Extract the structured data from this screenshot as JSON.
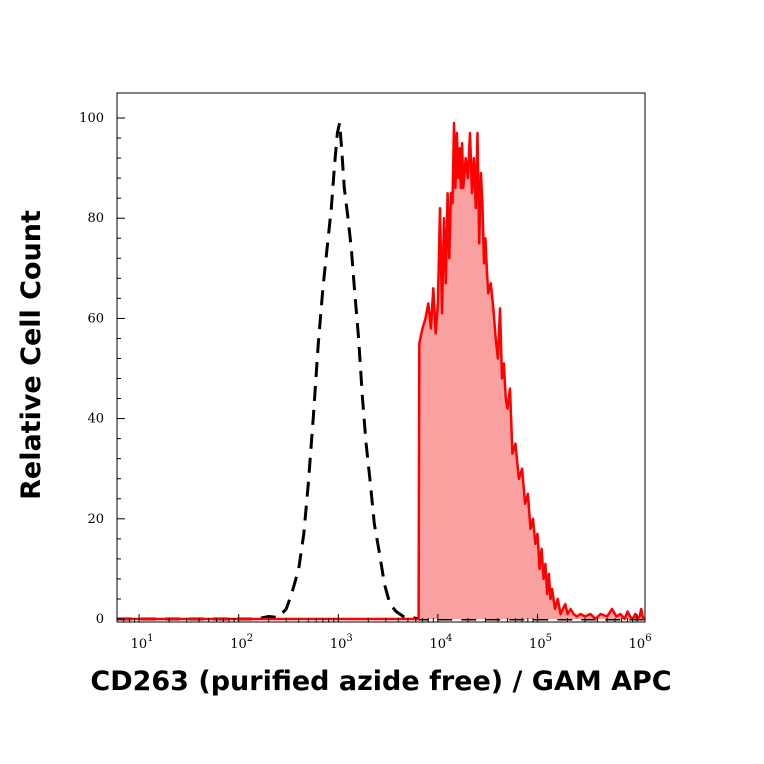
{
  "chart_data": {
    "type": "area",
    "title": "",
    "xlabel": "CD263 (purified azide free) / GAM APC",
    "ylabel": "Relative Cell Count",
    "x_scale": "log",
    "xlim": [
      6,
      1200000
    ],
    "ylim": [
      0,
      100
    ],
    "grid": false,
    "legend": "none",
    "x_ticks": [
      {
        "value": 10,
        "base": "10",
        "exp": "1"
      },
      {
        "value": 100,
        "base": "10",
        "exp": "2"
      },
      {
        "value": 1000,
        "base": "10",
        "exp": "3"
      },
      {
        "value": 10000,
        "base": "10",
        "exp": "4"
      },
      {
        "value": 100000,
        "base": "10",
        "exp": "5"
      },
      {
        "value": 1000000,
        "base": "10",
        "exp": "6"
      }
    ],
    "y_ticks": [
      {
        "value": 0,
        "label": "0"
      },
      {
        "value": 20,
        "label": "20"
      },
      {
        "value": 40,
        "label": "40"
      },
      {
        "value": 60,
        "label": "60"
      },
      {
        "value": 80,
        "label": "80"
      },
      {
        "value": 100,
        "label": "100"
      }
    ],
    "series": [
      {
        "style": "dashed-line",
        "color": "#000000",
        "x": [
          6,
          150,
          200,
          250,
          300,
          340,
          400,
          450,
          500,
          560,
          630,
          700,
          780,
          850,
          920,
          980,
          1030,
          1080,
          1150,
          1250,
          1350,
          1450,
          1600,
          1750,
          1900,
          2100,
          2300,
          2600,
          2900,
          3300,
          3800,
          4500,
          5500,
          6500,
          1200000
        ],
        "y": [
          0,
          0,
          0.5,
          0.3,
          2,
          5,
          10,
          17,
          27,
          40,
          55,
          66,
          75,
          82,
          91,
          97,
          99,
          94,
          86,
          80,
          74,
          66,
          56,
          44,
          35,
          27,
          19,
          13,
          7,
          3,
          1.5,
          0.5,
          0.3,
          0,
          0
        ]
      },
      {
        "style": "filled-area",
        "color": "#ff0000",
        "fill": "#f9a0a0",
        "x": [
          6,
          6400,
          6500,
          7000,
          7500,
          8000,
          8500,
          9000,
          9500,
          10000,
          10500,
          11000,
          11500,
          12000,
          12500,
          13000,
          13500,
          14000,
          14500,
          15000,
          15500,
          16000,
          16500,
          17000,
          17500,
          18000,
          19000,
          20000,
          21000,
          22000,
          23000,
          24000,
          25000,
          26000,
          27000,
          28000,
          29000,
          30000,
          31000,
          32000,
          34000,
          36000,
          38000,
          40000,
          42000,
          44000,
          46000,
          48000,
          50000,
          53000,
          56000,
          60000,
          65000,
          70000,
          75000,
          80000,
          85000,
          90000,
          95000,
          100000,
          105000,
          110000,
          115000,
          120000,
          125000,
          130000,
          135000,
          140000,
          150000,
          160000,
          170000,
          180000,
          190000,
          200000,
          215000,
          230000,
          250000,
          270000,
          300000,
          340000,
          380000,
          430000,
          500000,
          560000,
          620000,
          680000,
          750000,
          800000,
          850000,
          900000,
          960000,
          1000000,
          1060000,
          1100000,
          1150000,
          1200000
        ],
        "y": [
          0,
          0,
          55,
          58,
          60,
          63,
          58,
          66,
          57,
          63,
          82,
          61,
          80,
          67,
          85,
          72,
          85,
          83,
          99,
          86,
          97,
          88,
          94,
          86,
          95,
          86,
          92,
          88,
          97,
          85,
          92,
          82,
          97,
          75,
          89,
          83,
          71,
          76,
          70,
          65,
          67,
          62,
          56,
          52,
          62,
          48,
          51,
          44,
          42,
          46,
          33,
          35,
          28,
          30,
          23,
          25,
          18,
          20,
          15,
          17,
          10,
          14,
          8,
          11,
          5,
          9,
          4,
          6,
          2,
          4,
          1,
          2,
          3,
          1,
          2,
          1,
          0.5,
          1,
          0.5,
          1,
          0,
          1,
          0.5,
          2,
          0.5,
          1,
          0,
          1.5,
          0.5,
          0,
          1,
          0,
          0.5,
          2,
          0,
          0
        ]
      }
    ]
  }
}
